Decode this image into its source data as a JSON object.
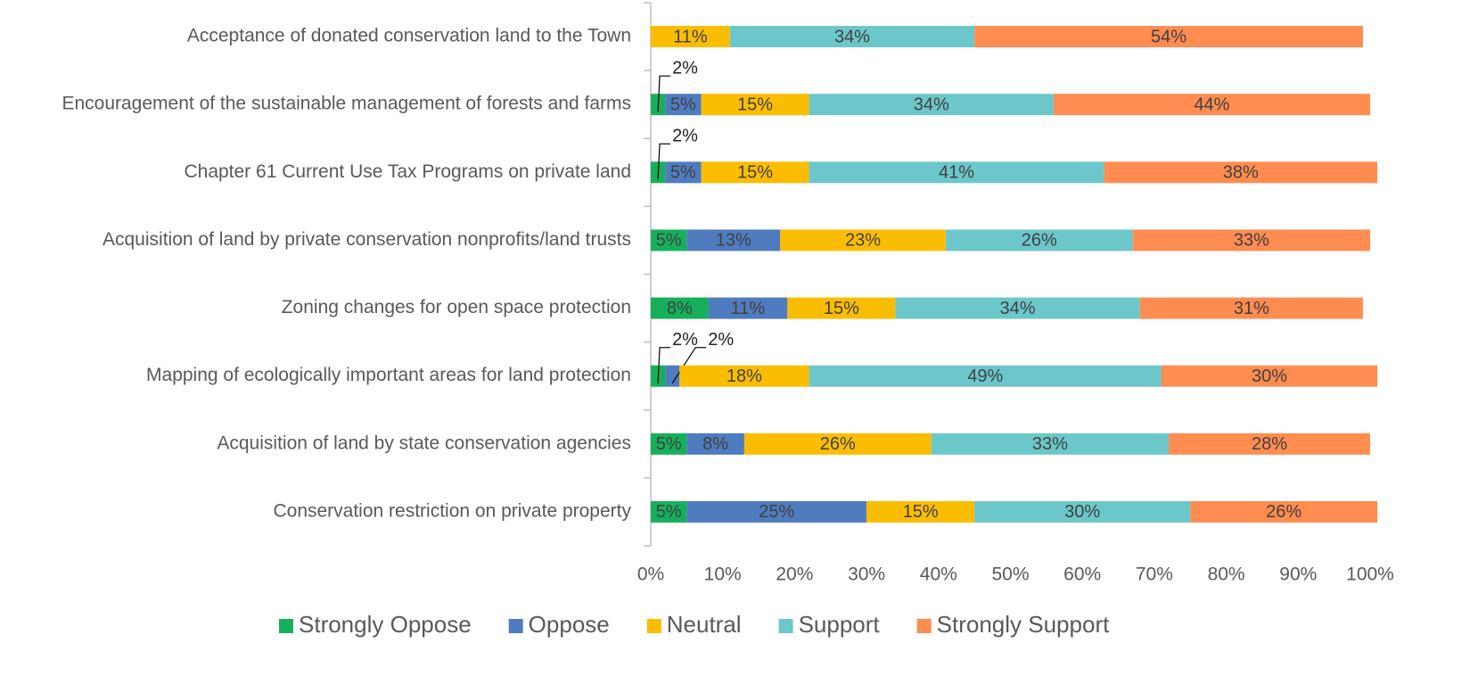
{
  "chart_data": {
    "type": "stacked-bar-horizontal",
    "categories": [
      "Acceptance of donated conservation land to the Town",
      "Encouragement of the sustainable management of forests and farms",
      "Chapter 61 Current Use Tax Programs on private land",
      "Acquisition of land by private conservation nonprofits/land trusts",
      "Zoning changes for open space protection",
      "Mapping of ecologically important areas for land protection",
      "Acquisition of land by state conservation agencies",
      "Conservation restriction on private property"
    ],
    "series": [
      {
        "name": "Strongly Oppose",
        "color": "#16b05c",
        "values": [
          null,
          2,
          2,
          5,
          8,
          2,
          5,
          5
        ],
        "value_labels": [
          null,
          "2%",
          "2%",
          "5%",
          "8%",
          "2%",
          "5%",
          "5%"
        ]
      },
      {
        "name": "Oppose",
        "color": "#4f7cbf",
        "values": [
          null,
          5,
          5,
          13,
          11,
          2,
          8,
          25
        ],
        "value_labels": [
          null,
          "5%",
          "5%",
          "13%",
          "11%",
          "2%",
          "8%",
          "25%"
        ]
      },
      {
        "name": "Neutral",
        "color": "#fbbd02",
        "values": [
          11,
          15,
          15,
          23,
          15,
          18,
          26,
          15
        ],
        "value_labels": [
          "11%",
          "15%",
          "15%",
          "23%",
          "15%",
          "18%",
          "26%",
          "15%"
        ]
      },
      {
        "name": "Support",
        "color": "#6cc7ca",
        "values": [
          34,
          34,
          41,
          26,
          34,
          49,
          33,
          30
        ],
        "value_labels": [
          "34%",
          "34%",
          "41%",
          "26%",
          "34%",
          "49%",
          "33%",
          "30%"
        ]
      },
      {
        "name": "Strongly Support",
        "color": "#ff8c50",
        "values": [
          54,
          44,
          38,
          33,
          31,
          30,
          28,
          26
        ],
        "value_labels": [
          "54%",
          "44%",
          "38%",
          "33%",
          "31%",
          "30%",
          "28%",
          "26%"
        ]
      }
    ],
    "xlim": [
      0,
      100
    ],
    "xticks": [
      {
        "value": 0,
        "label": "0%"
      },
      {
        "value": 10,
        "label": "10%"
      },
      {
        "value": 20,
        "label": "20%"
      },
      {
        "value": 30,
        "label": "30%"
      },
      {
        "value": 40,
        "label": "40%"
      },
      {
        "value": 50,
        "label": "50%"
      },
      {
        "value": 60,
        "label": "60%"
      },
      {
        "value": 70,
        "label": "70%"
      },
      {
        "value": 80,
        "label": "80%"
      },
      {
        "value": 90,
        "label": "90%"
      },
      {
        "value": 100,
        "label": "100%"
      }
    ],
    "grid": false,
    "legend": "bottom"
  }
}
